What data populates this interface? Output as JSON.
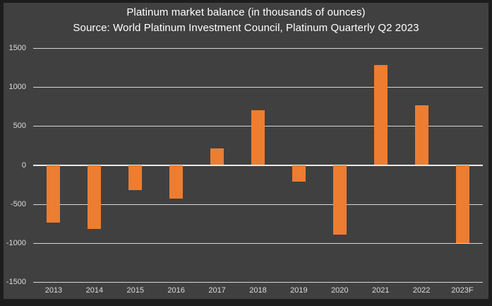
{
  "window": {
    "background_color": "#404040",
    "border_color": "#1d1d1d"
  },
  "chart_data": {
    "type": "bar",
    "title": "Platinum market balance (in thousands of ounces)",
    "subtitle": "Source: World Platinum Investment Council, Platinum Quarterly Q2 2023",
    "categories": [
      "2013",
      "2014",
      "2015",
      "2016",
      "2017",
      "2018",
      "2019",
      "2020",
      "2021",
      "2022",
      "2023F"
    ],
    "values": [
      -735,
      -820,
      -325,
      -430,
      210,
      705,
      -215,
      -895,
      1285,
      765,
      -1000
    ],
    "xlabel": "",
    "ylabel": "",
    "ylim": [
      -1500,
      1500
    ],
    "yticks": [
      1500,
      1000,
      500,
      0,
      -500,
      -1000,
      -1500
    ],
    "grid": true,
    "legend_position": "none",
    "bar_color": "#ed7d31",
    "background_color": "#404040",
    "gridline_color": "#d6d6d6",
    "zero_line_color": "#e9e9e9",
    "title_color": "#ffffff",
    "tick_label_color": "#dbdbdb"
  }
}
